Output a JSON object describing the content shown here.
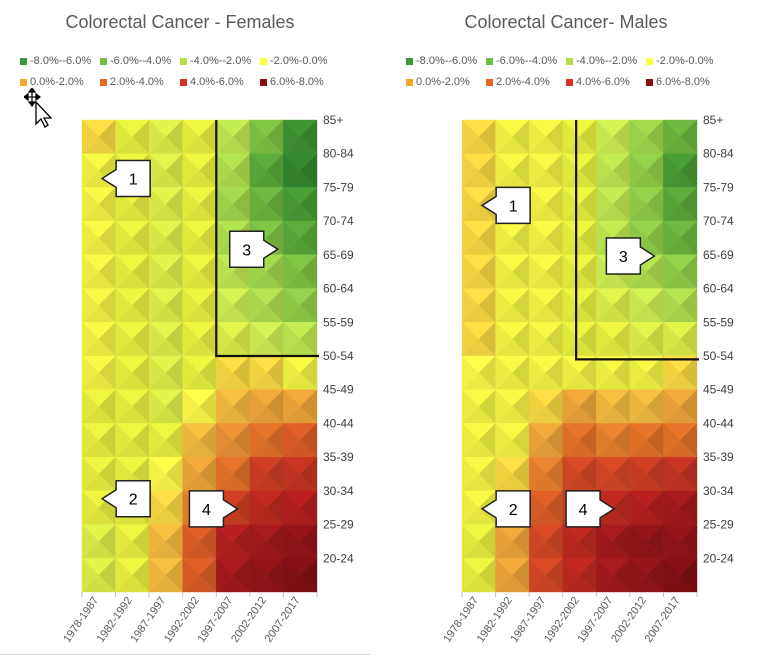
{
  "legend": [
    {
      "label": "-8.0%--6.0%",
      "color": "#3a9a3a"
    },
    {
      "label": "-6.0%--4.0%",
      "color": "#6fbf3f"
    },
    {
      "label": "-4.0%--2.0%",
      "color": "#b8dd4a"
    },
    {
      "label": "-2.0%-0.0%",
      "color": "#ffff44"
    },
    {
      "label": "0.0%-2.0%",
      "color": "#f0a830"
    },
    {
      "label": "2.0%-4.0%",
      "color": "#e86a20"
    },
    {
      "label": "4.0%-6.0%",
      "color": "#d93020"
    },
    {
      "label": "6.0%-8.0%",
      "color": "#8b1010"
    }
  ],
  "chart_data": [
    {
      "type": "heatmap",
      "title": "Colorectal Cancer - Females",
      "xlabel": "",
      "ylabel": "",
      "x_categories": [
        "1978-1987",
        "1982-1992",
        "1987-1997",
        "1992-2002",
        "1997-2007",
        "2002-2012",
        "2007-2017"
      ],
      "y_categories": [
        "85+",
        "80-84",
        "75-79",
        "70-74",
        "65-69",
        "60-64",
        "55-59",
        "50-54",
        "45-49",
        "40-44",
        "35-39",
        "30-34",
        "25-29",
        "20-24"
      ],
      "value_unit": "% annual change",
      "z": [
        [
          0.5,
          -1.0,
          -1.5,
          -1.0,
          -2.5,
          -4.5,
          -6.5
        ],
        [
          -0.5,
          -1.0,
          -1.5,
          -1.0,
          -3.0,
          -5.5,
          -7.0
        ],
        [
          -0.5,
          -1.0,
          -1.5,
          -1.0,
          -3.5,
          -5.0,
          -6.0
        ],
        [
          -0.5,
          -1.0,
          -1.5,
          -1.0,
          -3.0,
          -4.5,
          -5.5
        ],
        [
          -0.5,
          -1.0,
          -1.5,
          -1.0,
          -2.5,
          -3.5,
          -4.5
        ],
        [
          -0.5,
          -1.0,
          -1.5,
          -1.0,
          -2.0,
          -3.0,
          -4.0
        ],
        [
          -0.5,
          -1.0,
          -1.5,
          -1.0,
          -1.5,
          -2.0,
          -2.5
        ],
        [
          -0.5,
          -1.0,
          -1.5,
          -1.0,
          0.5,
          0.5,
          -0.5
        ],
        [
          -1.0,
          -1.0,
          -1.5,
          0.0,
          1.0,
          1.5,
          1.5
        ],
        [
          -1.0,
          -1.0,
          -1.0,
          1.0,
          2.0,
          3.0,
          3.5
        ],
        [
          -1.0,
          -1.0,
          0.0,
          1.5,
          3.0,
          4.5,
          5.0
        ],
        [
          -1.0,
          -1.0,
          0.5,
          2.5,
          4.5,
          5.5,
          6.0
        ],
        [
          -1.5,
          -1.0,
          1.0,
          3.5,
          6.0,
          6.5,
          7.0
        ],
        [
          -1.5,
          -1.0,
          1.0,
          3.5,
          6.5,
          7.0,
          7.5
        ]
      ],
      "annotations": [
        {
          "label": "1",
          "direction": "left",
          "col": 0.6,
          "row": 1.2
        },
        {
          "label": "2",
          "direction": "left",
          "col": 0.6,
          "row": 10.7
        },
        {
          "label": "3",
          "direction": "right",
          "col": 4.4,
          "row": 3.3
        },
        {
          "label": "4",
          "direction": "right",
          "col": 3.2,
          "row": 11.0
        }
      ],
      "boundary": {
        "col": 4.0,
        "row": 7.0
      }
    },
    {
      "type": "heatmap",
      "title": "Colorectal Cancer- Males",
      "xlabel": "",
      "ylabel": "",
      "x_categories": [
        "1978-1987",
        "1982-1992",
        "1987-1997",
        "1992-2002",
        "1997-2007",
        "2002-2012",
        "2007-2017"
      ],
      "y_categories": [
        "85+",
        "80-84",
        "75-79",
        "70-74",
        "65-69",
        "60-64",
        "55-59",
        "50-54",
        "45-49",
        "40-44",
        "35-39",
        "30-34",
        "25-29",
        "20-24"
      ],
      "value_unit": "% annual change",
      "z": [
        [
          0.5,
          -0.5,
          -0.5,
          -1.0,
          -2.0,
          -3.5,
          -5.0
        ],
        [
          0.5,
          -0.5,
          -0.5,
          -1.0,
          -2.5,
          -4.0,
          -6.0
        ],
        [
          0.5,
          -0.5,
          -0.5,
          -1.0,
          -2.5,
          -4.0,
          -5.5
        ],
        [
          0.5,
          -0.5,
          -0.5,
          -1.0,
          -2.5,
          -4.0,
          -5.0
        ],
        [
          0.5,
          -0.5,
          -0.5,
          -1.0,
          -2.0,
          -3.0,
          -4.0
        ],
        [
          0.5,
          -0.5,
          -0.5,
          -1.0,
          -1.5,
          -2.0,
          -3.0
        ],
        [
          0.5,
          -0.5,
          -0.5,
          -1.0,
          -1.0,
          -1.5,
          -1.5
        ],
        [
          0.0,
          -0.5,
          -0.5,
          -0.5,
          -0.5,
          -0.5,
          0.5
        ],
        [
          -0.5,
          -0.5,
          0.5,
          1.5,
          1.0,
          1.0,
          1.5
        ],
        [
          -0.5,
          -0.5,
          1.5,
          3.0,
          2.5,
          3.0,
          3.0
        ],
        [
          -0.5,
          0.5,
          2.5,
          4.0,
          4.0,
          4.5,
          5.0
        ],
        [
          -0.5,
          1.0,
          3.5,
          4.5,
          5.5,
          6.0,
          6.5
        ],
        [
          -1.0,
          1.5,
          4.0,
          5.5,
          6.5,
          7.0,
          7.0
        ],
        [
          -1.0,
          1.5,
          4.0,
          5.5,
          6.5,
          7.0,
          7.5
        ]
      ],
      "annotations": [
        {
          "label": "1",
          "direction": "left",
          "col": 0.6,
          "row": 2.0
        },
        {
          "label": "2",
          "direction": "left",
          "col": 0.6,
          "row": 11.0
        },
        {
          "label": "3",
          "direction": "right",
          "col": 4.3,
          "row": 3.5
        },
        {
          "label": "4",
          "direction": "right",
          "col": 3.1,
          "row": 11.0
        }
      ],
      "boundary": {
        "col": 3.4,
        "row": 7.1
      }
    }
  ]
}
